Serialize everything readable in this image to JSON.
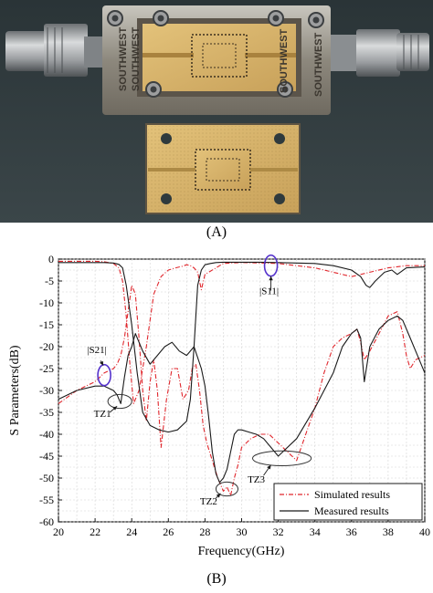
{
  "panel_a": {
    "caption": "(A)",
    "fixture_brand_top": "SOUTHWEST",
    "fixture_brand_left": "SOUTHWEST",
    "fixture_brand_right": "SOUTHWEST",
    "fixture_brand_bottom": "SOUTHWEST",
    "colors": {
      "background": "#2e3a3f",
      "fixture": "#9a9284",
      "substrate": "#d8b46a",
      "connector": "#a7a9ab"
    }
  },
  "panel_b": {
    "caption": "(B)"
  },
  "chart_data": {
    "type": "line",
    "xlabel": "Frequency(GHz)",
    "ylabel": "S Parameters(dB)",
    "xlim": [
      20,
      40
    ],
    "ylim": [
      -60,
      0
    ],
    "xticks": [
      20,
      22,
      24,
      26,
      28,
      30,
      32,
      34,
      36,
      38,
      40
    ],
    "yticks": [
      0,
      -5,
      -10,
      -15,
      -20,
      -25,
      -30,
      -35,
      -40,
      -45,
      -50,
      -55,
      -60
    ],
    "grid": true,
    "legend_position": "bottom-right",
    "series": [
      {
        "name": "Simulated results",
        "color": "#e0262c",
        "style": "dash-dot",
        "x": [
          20,
          21,
          22,
          22.5,
          23,
          23.3,
          23.5,
          23.7,
          23.9,
          24.1,
          24.4,
          24.8,
          25.2,
          25.6,
          26,
          26.4,
          26.8,
          27,
          27.2,
          27.4,
          27.6,
          27.8,
          28,
          29,
          30,
          32,
          34,
          35,
          36,
          37,
          38,
          39,
          40
        ],
        "y": [
          -0.5,
          -0.5,
          -0.5,
          -0.6,
          -1,
          -2,
          -5,
          -13,
          -24,
          -33,
          -30,
          -20,
          -8,
          -4,
          -2.5,
          -2,
          -1.6,
          -1.3,
          -1.5,
          -2,
          -3,
          -7,
          -3.5,
          -1,
          -0.8,
          -1,
          -2,
          -3,
          -4,
          -3,
          -2,
          -1.5,
          -1.5
        ]
      },
      {
        "name": "",
        "color": "#e0262c",
        "style": "dash-dot",
        "x": [
          20,
          21,
          22,
          22.5,
          23,
          23.2,
          23.4,
          23.6,
          23.8,
          24,
          24.2,
          24.4,
          24.6,
          24.8,
          25,
          25.2,
          25.4,
          25.6,
          25.9,
          26.2,
          26.5,
          26.8,
          27.1,
          27.3,
          27.5,
          27.7,
          27.9,
          28.1,
          28.4,
          28.7,
          29,
          29.2,
          29.4,
          29.6,
          29.8,
          30,
          30.5,
          31,
          31.5,
          32,
          32.5,
          33,
          33.5,
          34,
          34.5,
          35,
          35.5,
          36,
          36.3,
          36.5,
          36.7,
          37,
          37.5,
          38,
          38.5,
          38.8,
          39,
          39.2,
          39.5,
          40
        ],
        "y": [
          -33,
          -30,
          -28,
          -26,
          -25,
          -24,
          -22,
          -18,
          -12,
          -6,
          -8,
          -18,
          -30,
          -37,
          -28,
          -23,
          -30,
          -43,
          -32,
          -25,
          -25,
          -32,
          -30,
          -25,
          -24,
          -30,
          -38,
          -42,
          -46,
          -50,
          -53,
          -52,
          -54,
          -50,
          -47,
          -43,
          -41,
          -40,
          -40,
          -42,
          -44,
          -46,
          -40,
          -34,
          -26,
          -20,
          -18,
          -17,
          -16,
          -19,
          -23,
          -21,
          -17,
          -13,
          -12,
          -17,
          -22,
          -25,
          -23,
          -22
        ]
      },
      {
        "name": "Measured results",
        "color": "#1a1a1a",
        "style": "solid",
        "x": [
          20,
          21,
          22,
          22.5,
          23,
          23.2,
          23.4,
          23.6,
          23.8,
          24,
          24.2,
          24.6,
          25,
          25.4,
          25.8,
          26.2,
          26.6,
          27,
          27.4,
          27.8,
          28,
          28.2,
          28.4,
          28.6,
          28.8,
          29,
          29.2,
          29.4,
          29.6,
          29.8,
          30,
          30.4,
          30.8,
          31.2,
          31.6,
          32,
          33,
          34,
          35,
          35.5,
          36,
          36.3,
          36.5,
          36.7,
          37,
          37.5,
          38,
          38.5,
          38.8,
          39.2,
          39.6,
          40
        ],
        "y": [
          -32,
          -30,
          -29,
          -29,
          -30,
          -31,
          -33,
          -27,
          -22,
          -20,
          -17,
          -21,
          -24,
          -22,
          -20,
          -19,
          -21,
          -22,
          -20,
          -25,
          -29,
          -36,
          -44,
          -49,
          -51,
          -50,
          -48,
          -44,
          -40,
          -39,
          -39,
          -39.5,
          -40,
          -41,
          -43,
          -45,
          -41,
          -34,
          -26,
          -20,
          -17,
          -16,
          -18,
          -28,
          -20,
          -16,
          -14,
          -13,
          -14,
          -18,
          -22,
          -26
        ]
      },
      {
        "name": "",
        "color": "#1a1a1a",
        "style": "solid",
        "x": [
          20,
          21,
          22,
          22.5,
          23,
          23.3,
          23.5,
          23.7,
          24,
          24.3,
          24.6,
          25,
          25.5,
          26,
          26.5,
          27,
          27.2,
          27.4,
          27.6,
          27.8,
          28,
          28.3,
          28.6,
          29,
          30,
          31,
          32,
          34,
          35,
          36,
          36.5,
          36.8,
          37,
          37.3,
          37.8,
          38.2,
          38.5,
          39,
          40
        ],
        "y": [
          -0.8,
          -0.8,
          -0.8,
          -0.8,
          -0.9,
          -1.2,
          -2,
          -6,
          -15,
          -26,
          -35,
          -38,
          -39,
          -39.5,
          -39,
          -37,
          -32,
          -20,
          -6,
          -2.5,
          -1.3,
          -1,
          -0.8,
          -0.7,
          -0.7,
          -0.7,
          -0.8,
          -1,
          -1.5,
          -2.5,
          -4,
          -6,
          -6.5,
          -5,
          -3,
          -2.5,
          -3.5,
          -2,
          -1.8
        ]
      }
    ],
    "annotations": [
      {
        "text": "|S11|",
        "x": 31.5,
        "y": -8
      },
      {
        "text": "|S21|",
        "x": 22.1,
        "y": -21.5
      },
      {
        "text": "TZ1",
        "x": 22.4,
        "y": -36
      },
      {
        "text": "TZ2",
        "x": 28.2,
        "y": -56
      },
      {
        "text": "TZ3",
        "x": 30.8,
        "y": -51
      }
    ],
    "markers": [
      {
        "kind": "ellipse",
        "color": "#5533cc",
        "cx": 31.6,
        "cy": -1.5,
        "rx": 0.35,
        "ry": 2.4
      },
      {
        "kind": "ellipse",
        "color": "#5533cc",
        "cx": 22.5,
        "cy": -26.5,
        "rx": 0.35,
        "ry": 2.4
      },
      {
        "kind": "ellipse",
        "color": "#333333",
        "cx": 23.35,
        "cy": -32.5,
        "rx": 0.65,
        "ry": 1.6
      },
      {
        "kind": "ellipse",
        "color": "#333333",
        "cx": 29.2,
        "cy": -52.5,
        "rx": 0.6,
        "ry": 1.6
      },
      {
        "kind": "ellipse",
        "color": "#333333",
        "cx": 32.2,
        "cy": -45.5,
        "rx": 1.6,
        "ry": 1.7
      }
    ]
  }
}
